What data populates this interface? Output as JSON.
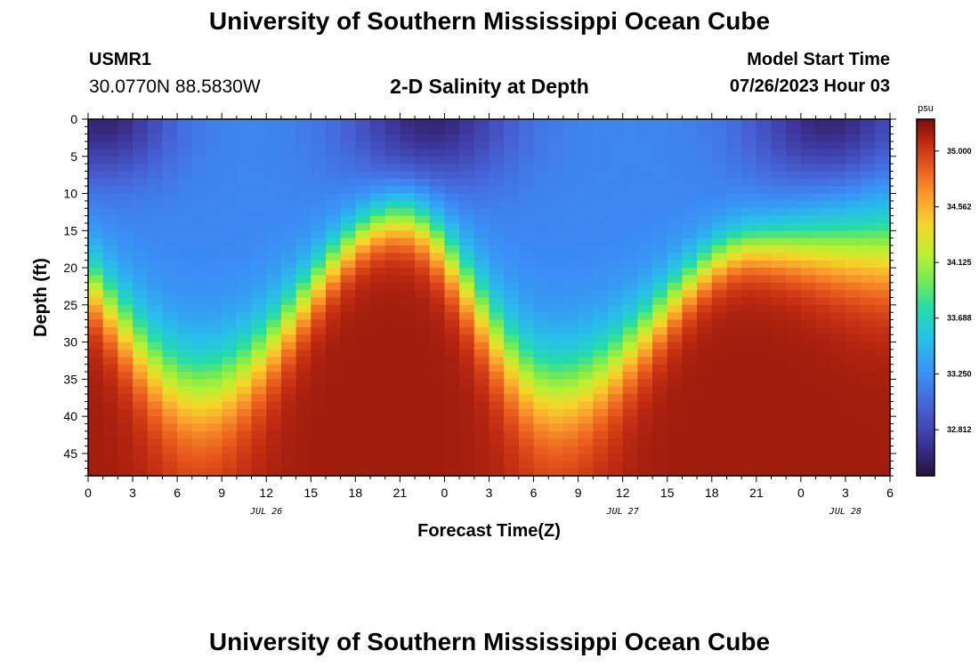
{
  "header": {
    "title": "University of Southern Mississippi Ocean Cube",
    "station": "USMR1",
    "coordinates": "30.0770N  88.5830W",
    "subtitle": "2-D Salinity at Depth",
    "model_start_label": "Model Start Time",
    "model_start_value": "07/26/2023 Hour 03"
  },
  "footer": {
    "title": "University of Southern Mississippi Ocean Cube"
  },
  "chart_data": {
    "type": "heatmap",
    "title": "2-D Salinity at Depth",
    "xlabel": "Forecast Time(Z)",
    "ylabel": "Depth (ft)",
    "x_range_hours": [
      0,
      54
    ],
    "y_range_ft": [
      0,
      48
    ],
    "x_tick_labels": [
      "0",
      "3",
      "6",
      "9",
      "12",
      "15",
      "18",
      "21",
      "0",
      "3",
      "6",
      "9",
      "12",
      "15",
      "18",
      "21",
      "0",
      "3",
      "6"
    ],
    "y_tick_labels": [
      "0",
      "5",
      "10",
      "15",
      "20",
      "25",
      "30",
      "35",
      "40",
      "45"
    ],
    "y_tick_values": [
      0,
      5,
      10,
      15,
      20,
      25,
      30,
      35,
      40,
      45
    ],
    "date_labels": [
      {
        "text": "JUL 26",
        "hour": 12
      },
      {
        "text": "JUL 27",
        "hour": 36
      },
      {
        "text": "JUL 28",
        "hour": 51
      }
    ],
    "colorbar": {
      "unit": "psu",
      "min": 32.45,
      "max": 35.25,
      "tick_values": [
        35.0,
        34.562,
        34.125,
        33.688,
        33.25,
        32.812
      ],
      "tick_labels": [
        "35.000",
        "34.562",
        "34.125",
        "33.688",
        "33.250",
        "32.812"
      ]
    },
    "field_summary": {
      "surface_low_centers_hour": [
        1,
        23,
        50
      ],
      "surface_low_value": 32.6,
      "upper_layer_value": 33.2,
      "bottom_high_value": 35.15,
      "halocline_troughs_hour": [
        7.5,
        31.5
      ],
      "halocline_crests_hour": [
        21,
        45
      ]
    }
  }
}
